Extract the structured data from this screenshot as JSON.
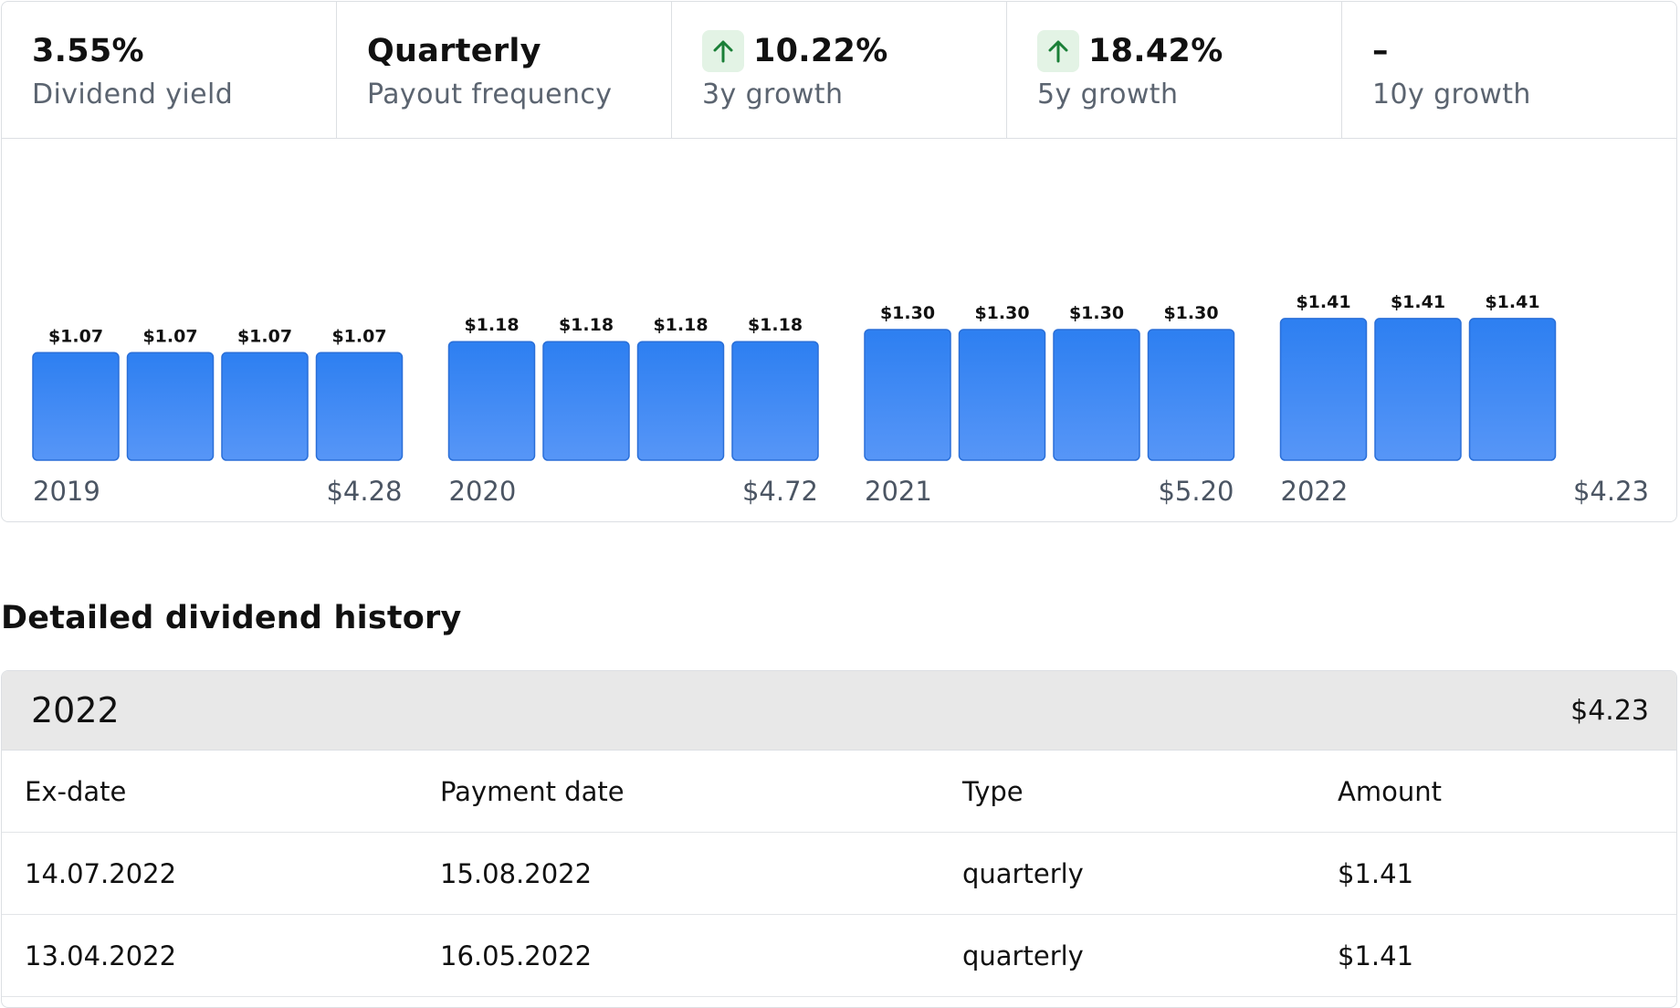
{
  "stats": [
    {
      "value": "3.55%",
      "label": "Dividend yield",
      "arrow": false
    },
    {
      "value": "Quarterly",
      "label": "Payout frequency",
      "arrow": false
    },
    {
      "value": "10.22%",
      "label": "3y growth",
      "arrow": true,
      "arrow_icon": "arrow-up-icon"
    },
    {
      "value": "18.42%",
      "label": "5y growth",
      "arrow": true,
      "arrow_icon": "arrow-up-icon"
    },
    {
      "value": "–",
      "label": "10y growth",
      "arrow": false
    }
  ],
  "colors": {
    "bar_top": "#2d7ff1",
    "bar_bottom": "#5796f7",
    "bar_stroke": "#2a6fd8",
    "growth_badge_bg": "#e3f3e5",
    "growth_arrow": "#1a7f37",
    "header_bg": "#e8e8e8"
  },
  "chart_data": {
    "type": "bar",
    "title": "",
    "xlabel": "",
    "ylabel": "",
    "groups": [
      {
        "year": "2019",
        "total": "$4.28",
        "values": [
          1.07,
          1.07,
          1.07,
          1.07
        ],
        "labels": [
          "$1.07",
          "$1.07",
          "$1.07",
          "$1.07"
        ]
      },
      {
        "year": "2020",
        "total": "$4.72",
        "values": [
          1.18,
          1.18,
          1.18,
          1.18
        ],
        "labels": [
          "$1.18",
          "$1.18",
          "$1.18",
          "$1.18"
        ]
      },
      {
        "year": "2021",
        "total": "$5.20",
        "values": [
          1.3,
          1.3,
          1.3,
          1.3
        ],
        "labels": [
          "$1.30",
          "$1.30",
          "$1.30",
          "$1.30"
        ]
      },
      {
        "year": "2022",
        "total": "$4.23",
        "values": [
          1.41,
          1.41,
          1.41
        ],
        "labels": [
          "$1.41",
          "$1.41",
          "$1.41"
        ]
      }
    ]
  },
  "section_title": "Detailed dividend history",
  "history": {
    "year": "2022",
    "total": "$4.23",
    "columns": [
      "Ex-date",
      "Payment date",
      "Type",
      "Amount"
    ],
    "rows": [
      [
        "14.07.2022",
        "15.08.2022",
        "quarterly",
        "$1.41"
      ],
      [
        "13.04.2022",
        "16.05.2022",
        "quarterly",
        "$1.41"
      ]
    ]
  }
}
